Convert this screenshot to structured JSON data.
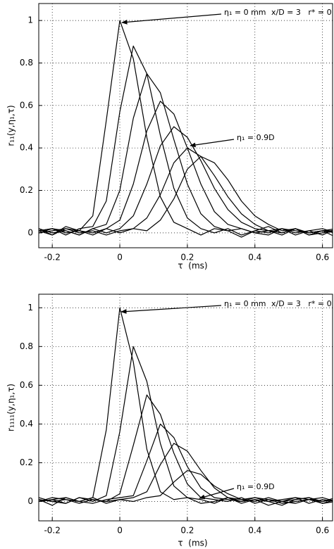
{
  "chart_data": [
    {
      "type": "line",
      "ylabel": "r₁₁(y,η₁,τ)",
      "xlabel": "τ  (ms)",
      "annotations": [
        "η₁ = 0 mm",
        "x/D = 3   r* = 0",
        "η₁ = 0.9D"
      ],
      "grid": true,
      "xlim": [
        -0.24,
        0.63
      ],
      "ylim": [
        -0.07,
        1.08
      ],
      "xticks": [
        -0.2,
        0,
        0.2,
        0.4,
        0.6
      ],
      "yticks": [
        0,
        0.2,
        0.4,
        0.6,
        0.8,
        1
      ],
      "x": [
        -0.24,
        -0.2,
        -0.16,
        -0.12,
        -0.08,
        -0.04,
        0,
        0.04,
        0.08,
        0.12,
        0.16,
        0.2,
        0.24,
        0.28,
        0.32,
        0.36,
        0.4,
        0.44,
        0.48,
        0.52,
        0.56,
        0.6,
        0.64
      ],
      "series": [
        {
          "color": "#000000",
          "values": [
            0.02,
            -0.01,
            0.03,
            0.01,
            0.08,
            0.53,
            1,
            0.82,
            0.45,
            0.17,
            0.05,
            0.02,
            -0.01,
            0.02,
            0.01,
            -0.02,
            0.01,
            0.03,
            0,
            0.02,
            -0.01,
            0.01,
            0.02
          ]
        },
        {
          "color": "#000000",
          "values": [
            0.01,
            0.02,
            -0.01,
            0.02,
            0.03,
            0.15,
            0.57,
            0.88,
            0.75,
            0.46,
            0.21,
            0.07,
            0.02,
            0,
            0.02,
            -0.01,
            0.01,
            0,
            0.02,
            -0.01,
            0.01,
            0.02,
            0
          ]
        },
        {
          "color": "#000000",
          "values": [
            0,
            0.02,
            0.01,
            -0.01,
            0.02,
            0.04,
            0.2,
            0.54,
            0.75,
            0.66,
            0.44,
            0.23,
            0.09,
            0.03,
            0.01,
            0.02,
            0,
            -0.01,
            0.02,
            0.01,
            0,
            0.01,
            -0.02
          ]
        },
        {
          "color": "#000000",
          "values": [
            0.01,
            -0.01,
            0.02,
            0.01,
            0,
            0.02,
            0.06,
            0.23,
            0.48,
            0.62,
            0.56,
            0.4,
            0.23,
            0.1,
            0.04,
            0.02,
            0,
            0.01,
            -0.01,
            0.02,
            0,
            0.01,
            0.01
          ]
        },
        {
          "color": "#000000",
          "values": [
            0.02,
            0,
            0.01,
            -0.01,
            0.02,
            0,
            0.02,
            0.08,
            0.23,
            0.41,
            0.5,
            0.45,
            0.34,
            0.21,
            0.11,
            0.05,
            0.02,
            0.01,
            0,
            0.02,
            -0.01,
            0,
            0.01
          ]
        },
        {
          "color": "#000000",
          "values": [
            0.01,
            0.02,
            0,
            0.01,
            -0.01,
            0.02,
            0,
            0.02,
            0.07,
            0.18,
            0.33,
            0.4,
            0.36,
            0.27,
            0.17,
            0.09,
            0.04,
            0.01,
            0.02,
            0,
            0.01,
            -0.01,
            0.02
          ]
        },
        {
          "color": "#000000",
          "values": [
            0,
            0.01,
            0.02,
            0,
            0.01,
            -0.01,
            0.01,
            0.02,
            0.01,
            0.06,
            0.16,
            0.3,
            0.36,
            0.33,
            0.25,
            0.15,
            0.08,
            0.04,
            0.01,
            0.02,
            0,
            0.01,
            0
          ]
        }
      ]
    },
    {
      "type": "line",
      "ylabel": "r₁₁₁₁(y,η₁,τ)",
      "xlabel": "τ  (ms)",
      "annotations": [
        "η₁ = 0 mm",
        "x/D = 3   r* = 0",
        "η₁ = 0.9D"
      ],
      "grid": true,
      "xlim": [
        -0.24,
        0.63
      ],
      "ylim": [
        -0.1,
        1.07
      ],
      "xticks": [
        -0.2,
        0,
        0.2,
        0.4,
        0.6
      ],
      "yticks": [
        0,
        0.2,
        0.4,
        0.6,
        0.8,
        1
      ],
      "x": [
        -0.24,
        -0.2,
        -0.16,
        -0.12,
        -0.08,
        -0.04,
        0,
        0.04,
        0.08,
        0.12,
        0.16,
        0.2,
        0.24,
        0.28,
        0.32,
        0.36,
        0.4,
        0.44,
        0.48,
        0.52,
        0.56,
        0.6,
        0.64
      ],
      "series": [
        {
          "color": "#000000",
          "values": [
            0.01,
            -0.02,
            0.02,
            0,
            0.02,
            0.37,
            1,
            0.72,
            0.27,
            0.05,
            0.01,
            0.02,
            -0.01,
            0,
            0.02,
            -0.01,
            0.01,
            0,
            -0.02,
            0.01,
            0.02,
            0,
            0.01
          ]
        },
        {
          "color": "#000000",
          "values": [
            0,
            0.01,
            -0.01,
            0.02,
            0,
            0.03,
            0.36,
            0.8,
            0.62,
            0.3,
            0.08,
            0.02,
            0.01,
            -0.01,
            0.02,
            0,
            0.01,
            -0.02,
            0,
            0.01,
            0.02,
            -0.01,
            0
          ]
        },
        {
          "color": "#000000",
          "values": [
            0.02,
            0,
            0.01,
            -0.01,
            0.01,
            0,
            0.04,
            0.29,
            0.55,
            0.45,
            0.25,
            0.09,
            0.02,
            0.01,
            0,
            0.02,
            -0.01,
            0.01,
            0,
            0.02,
            0.01,
            -0.01,
            0.01
          ]
        },
        {
          "color": "#000000",
          "values": [
            0,
            0.01,
            0.02,
            0,
            -0.01,
            0.01,
            0.02,
            0.03,
            0.21,
            0.4,
            0.33,
            0.18,
            0.07,
            0.02,
            0.01,
            0,
            0.02,
            0.01,
            -0.01,
            0,
            0.01,
            0.02,
            0
          ]
        },
        {
          "color": "#000000",
          "values": [
            0.01,
            0,
            -0.01,
            0.02,
            0.01,
            0,
            0.01,
            0.02,
            0.05,
            0.19,
            0.3,
            0.26,
            0.16,
            0.07,
            0.02,
            0.01,
            0,
            0.02,
            0,
            -0.01,
            0.01,
            0,
            0.02
          ]
        },
        {
          "color": "#000000",
          "values": [
            0,
            0.02,
            0.01,
            0,
            0.02,
            -0.01,
            0.01,
            0,
            0.02,
            0.03,
            0.1,
            0.16,
            0.14,
            0.08,
            0.04,
            0.01,
            0.02,
            0,
            0.01,
            0.02,
            -0.01,
            0.01,
            0
          ]
        }
      ]
    }
  ]
}
